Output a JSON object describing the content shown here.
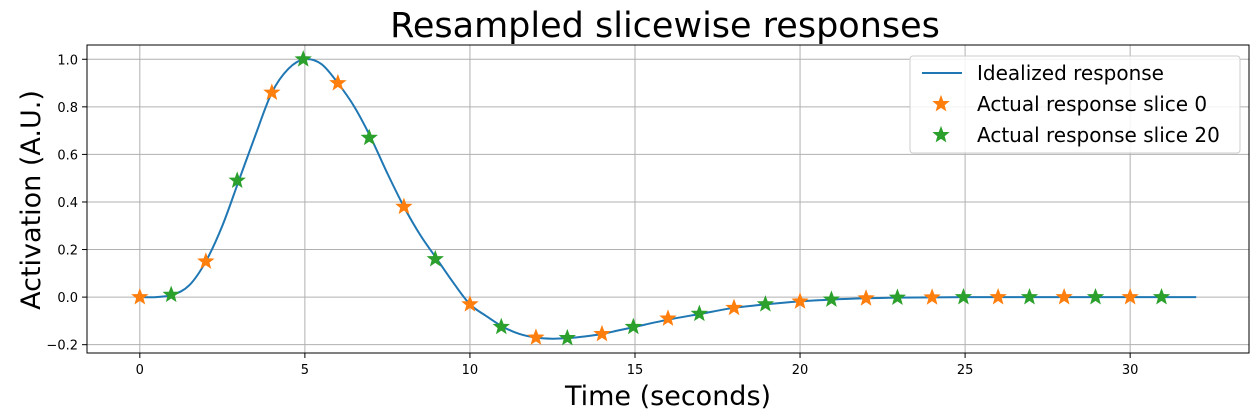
{
  "chart_data": {
    "type": "line",
    "title": "Resampled slicewise responses",
    "xlabel": "Time (seconds)",
    "ylabel": "Activation (A.U.)",
    "xlim": [
      -1.6,
      33.6
    ],
    "ylim": [
      -0.235,
      1.06
    ],
    "xticks": [
      0,
      5,
      10,
      15,
      20,
      25,
      30
    ],
    "yticks": [
      -0.2,
      0.0,
      0.2,
      0.4,
      0.6,
      0.8,
      1.0
    ],
    "xtick_labels": [
      "0",
      "5",
      "10",
      "15",
      "20",
      "25",
      "30"
    ],
    "ytick_labels": [
      "−0.2",
      "0.0",
      "0.2",
      "0.4",
      "0.6",
      "0.8",
      "1.0"
    ],
    "grid": true,
    "legend_position": "top-right",
    "series": [
      {
        "name": "Idealized response",
        "kind": "line",
        "color": "#1f77b4",
        "x": [
          0,
          0.5,
          1,
          1.5,
          2,
          2.5,
          3,
          3.5,
          4,
          4.5,
          5,
          5.5,
          6,
          6.5,
          7,
          7.5,
          8,
          8.5,
          9,
          9.5,
          10,
          10.5,
          11,
          11.5,
          12,
          12.5,
          13,
          13.5,
          14,
          14.5,
          15,
          16,
          17,
          18,
          19,
          20,
          21,
          22,
          23,
          24,
          25,
          26,
          27,
          28,
          29,
          30,
          31,
          32
        ],
        "y": [
          0.0,
          0.0,
          0.01,
          0.05,
          0.15,
          0.3,
          0.49,
          0.68,
          0.86,
          0.96,
          1.0,
          0.98,
          0.9,
          0.8,
          0.67,
          0.52,
          0.38,
          0.26,
          0.16,
          0.06,
          -0.03,
          -0.08,
          -0.125,
          -0.155,
          -0.17,
          -0.175,
          -0.172,
          -0.165,
          -0.155,
          -0.14,
          -0.125,
          -0.095,
          -0.07,
          -0.045,
          -0.03,
          -0.018,
          -0.01,
          -0.005,
          -0.002,
          -0.001,
          0.0,
          0.0,
          0.0,
          0.0,
          0.0,
          0.0,
          0.0,
          0.0
        ]
      },
      {
        "name": "Actual response slice 0",
        "kind": "star",
        "color": "#ff7f0e",
        "x": [
          0,
          2,
          4,
          6,
          8,
          10,
          12,
          14,
          16,
          18,
          20,
          22,
          24,
          26,
          28,
          30
        ],
        "y": [
          0.0,
          0.15,
          0.86,
          0.9,
          0.38,
          -0.03,
          -0.17,
          -0.155,
          -0.09,
          -0.045,
          -0.018,
          -0.005,
          -0.001,
          0.0,
          0.0,
          0.0
        ]
      },
      {
        "name": "Actual response slice 20",
        "kind": "star",
        "color": "#2ca02c",
        "x": [
          0.95,
          2.95,
          4.95,
          6.95,
          8.95,
          10.95,
          12.95,
          14.95,
          16.95,
          18.95,
          20.95,
          22.95,
          24.95,
          26.95,
          28.95,
          30.95
        ],
        "y": [
          0.01,
          0.49,
          1.0,
          0.67,
          0.16,
          -0.125,
          -0.172,
          -0.125,
          -0.07,
          -0.03,
          -0.01,
          -0.002,
          0.0,
          0.0,
          0.0,
          0.0
        ]
      }
    ]
  }
}
